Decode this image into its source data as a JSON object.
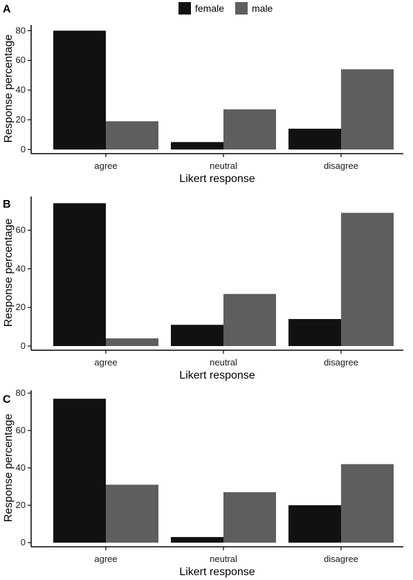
{
  "legend": {
    "entries": [
      {
        "label": "female",
        "color": "#111111"
      },
      {
        "label": "male",
        "color": "#5e5e5e"
      }
    ]
  },
  "chart_data": [
    {
      "panel": "A",
      "type": "bar",
      "categories": [
        "agree",
        "neutral",
        "disagree"
      ],
      "series": [
        {
          "name": "female",
          "values": [
            80,
            5,
            14
          ]
        },
        {
          "name": "male",
          "values": [
            19,
            27,
            54
          ]
        }
      ],
      "xlabel": "Likert response",
      "ylabel": "Response percentage",
      "ylim": [
        0,
        82
      ],
      "yticks": [
        0,
        20,
        40,
        60,
        80
      ],
      "grid": false
    },
    {
      "panel": "B",
      "type": "bar",
      "categories": [
        "agree",
        "neutral",
        "disagree"
      ],
      "series": [
        {
          "name": "female",
          "values": [
            74,
            11,
            14
          ]
        },
        {
          "name": "male",
          "values": [
            4,
            27,
            69
          ]
        }
      ],
      "xlabel": "Likert response",
      "ylabel": "Response percentage",
      "ylim": [
        0,
        76
      ],
      "yticks": [
        0,
        20,
        40,
        60
      ],
      "grid": false
    },
    {
      "panel": "C",
      "type": "bar",
      "categories": [
        "agree",
        "neutral",
        "disagree"
      ],
      "series": [
        {
          "name": "female",
          "values": [
            77,
            3,
            20
          ]
        },
        {
          "name": "male",
          "values": [
            31,
            27,
            42
          ]
        }
      ],
      "xlabel": "Likert response",
      "ylabel": "Response percentage",
      "ylim": [
        0,
        80
      ],
      "yticks": [
        0,
        20,
        40,
        60,
        80
      ],
      "grid": false
    }
  ]
}
